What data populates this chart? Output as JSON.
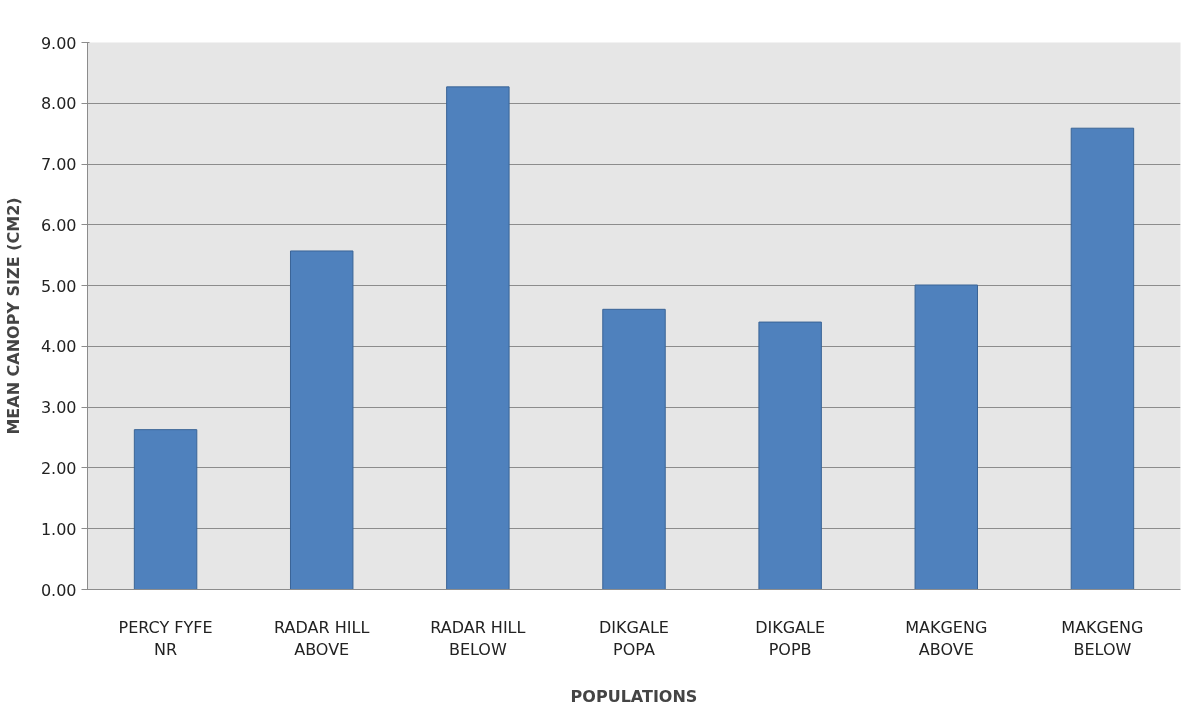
{
  "chart_data": {
    "type": "bar",
    "xlabel": "POPULATIONS",
    "ylabel": "MEAN CANOPY SIZE (CM2)",
    "categories": [
      "PERCY FYFE\nNR",
      "RADAR HILL\nABOVE",
      "RADAR HILL\nBELOW",
      "DIKGALE\nPOPA",
      "DIKGALE\nPOPB",
      "MAKGENG\nABOVE",
      "MAKGENG\nBELOW"
    ],
    "values": [
      2.63,
      5.57,
      8.27,
      4.61,
      4.4,
      5.01,
      7.59
    ],
    "color": "#4f81bd",
    "ylim": [
      0,
      9
    ],
    "yticks": [
      {
        "value": 0,
        "label": "0.00"
      },
      {
        "value": 1,
        "label": "1.00"
      },
      {
        "value": 2,
        "label": "2.00"
      },
      {
        "value": 3,
        "label": "3.00"
      },
      {
        "value": 4,
        "label": "4.00"
      },
      {
        "value": 5,
        "label": "5.00"
      },
      {
        "value": 6,
        "label": "6.00"
      },
      {
        "value": 7,
        "label": "7.00"
      },
      {
        "value": 8,
        "label": "8.00"
      },
      {
        "value": 9,
        "label": "9.00"
      }
    ],
    "grid": "y"
  }
}
